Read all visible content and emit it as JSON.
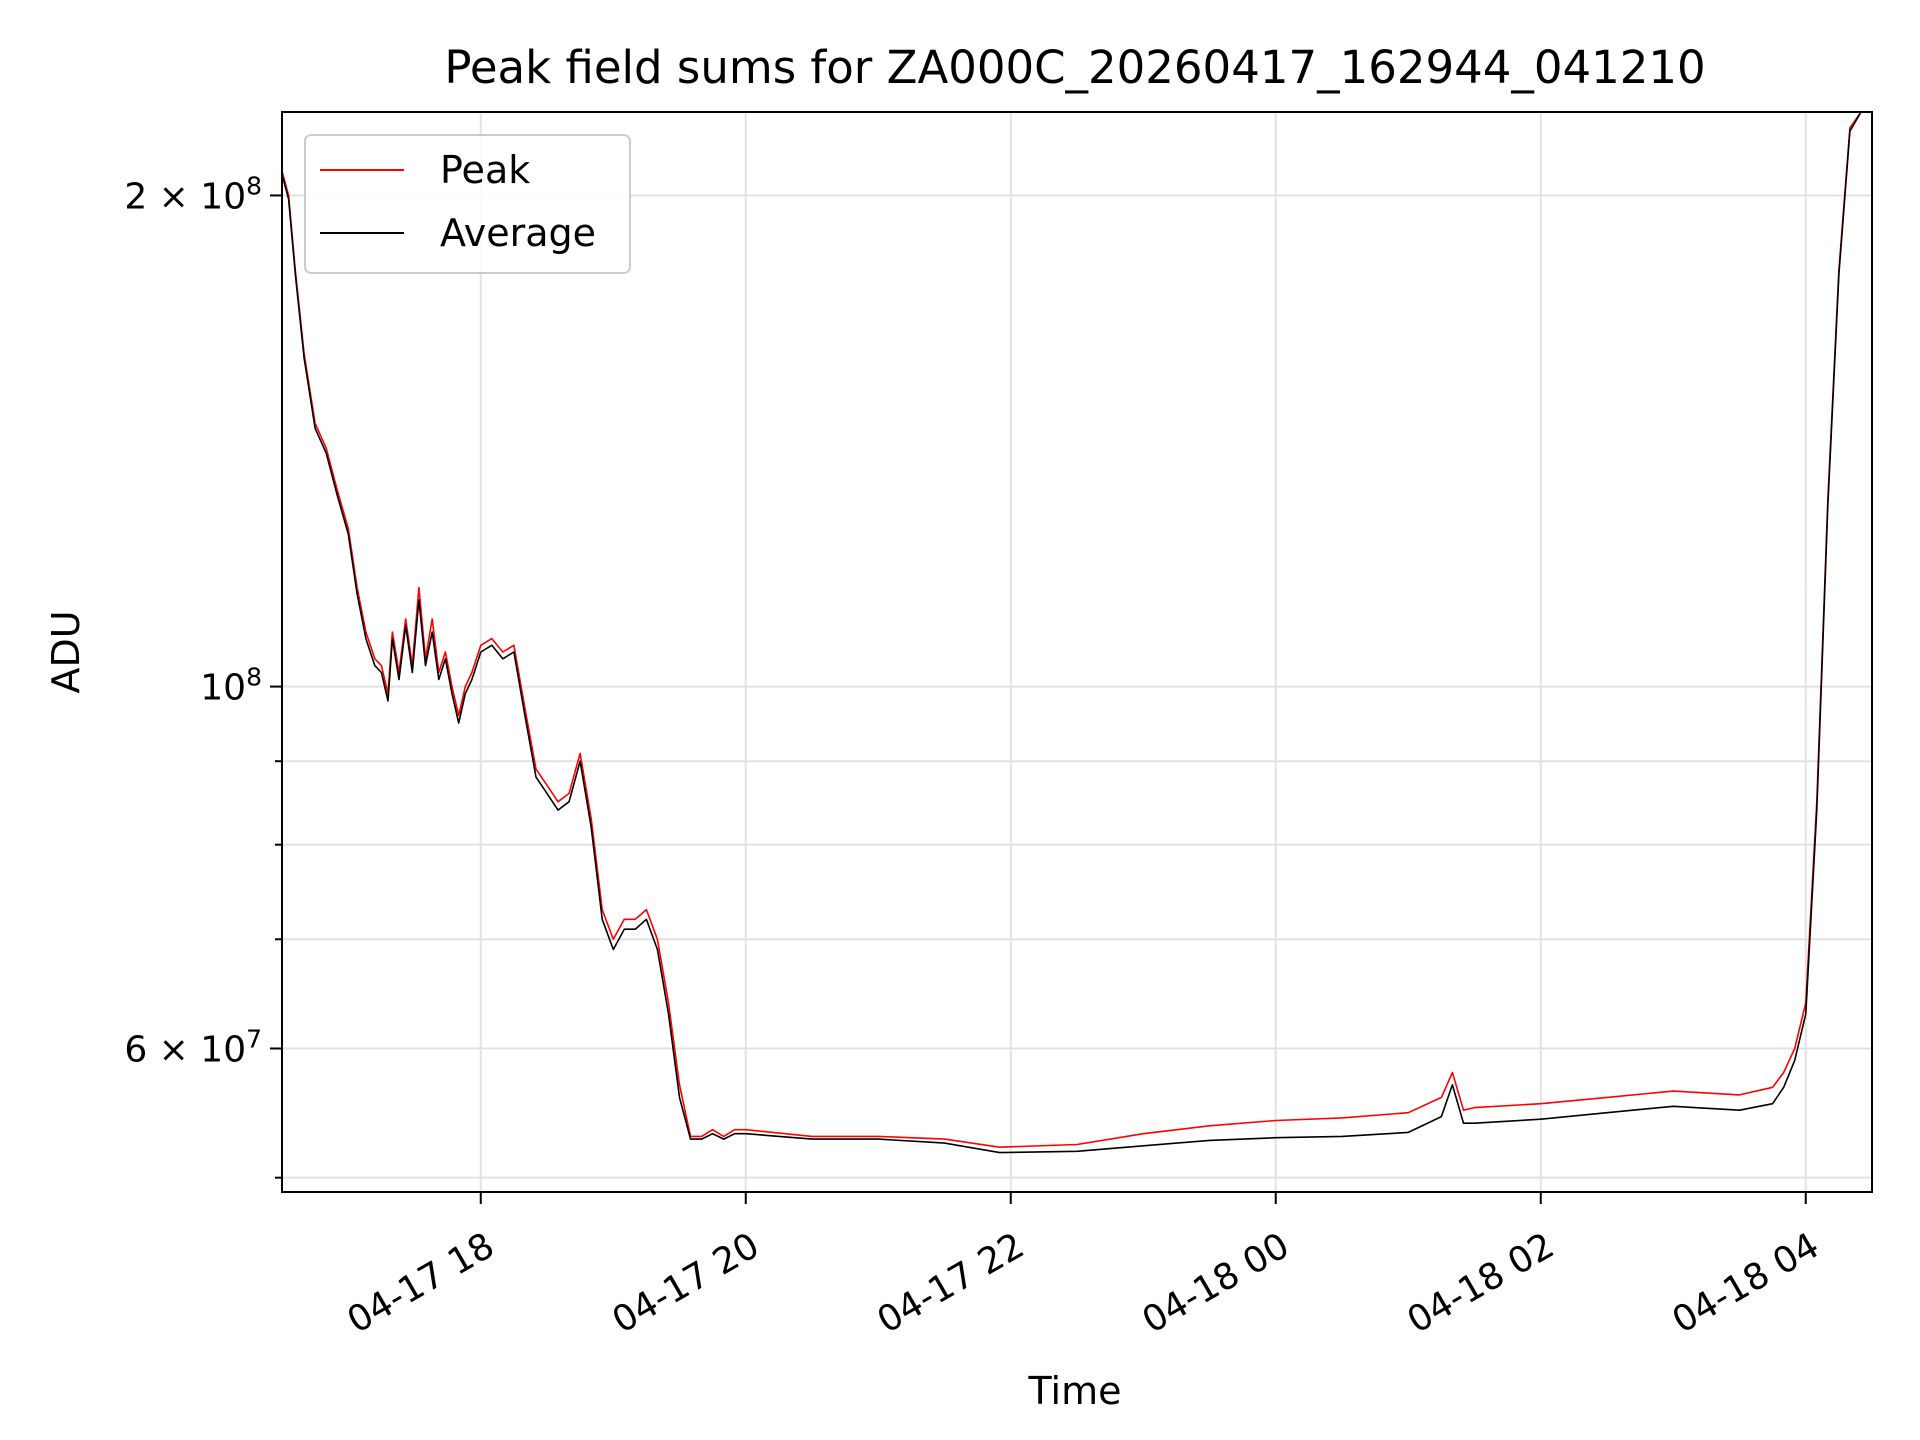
{
  "chart_data": {
    "type": "line",
    "title": "Peak field sums for ZA000C_20260417_162944_041210",
    "xlabel": "Time",
    "ylabel": "ADU",
    "yscale": "log",
    "grid": true,
    "legend_placement": "top-left",
    "xlim": [
      "2026-04-17 16:30",
      "2026-04-18 04:30"
    ],
    "ylim": [
      49000000,
      225000000
    ],
    "x_ticks": [
      {
        "value": "2026-04-17 18:00",
        "label": "04-17 18"
      },
      {
        "value": "2026-04-17 20:00",
        "label": "04-17 20"
      },
      {
        "value": "2026-04-17 22:00",
        "label": "04-17 22"
      },
      {
        "value": "2026-04-18 00:00",
        "label": "04-18 00"
      },
      {
        "value": "2026-04-18 02:00",
        "label": "04-18 02"
      },
      {
        "value": "2026-04-18 04:00",
        "label": "04-18 04"
      }
    ],
    "y_major_ticks": [
      {
        "value": 60000000,
        "mantissa": "6",
        "exponent": "7"
      },
      {
        "value": 100000000,
        "mantissa": "",
        "exponent": "8"
      },
      {
        "value": 200000000,
        "mantissa": "2",
        "exponent": "8"
      }
    ],
    "y_minor_ticks": [
      50000000,
      70000000,
      80000000,
      90000000
    ],
    "series": [
      {
        "name": "Peak",
        "color": "#ff0000",
        "x": [
          "2026-04-17 16:30",
          "2026-04-17 16:33",
          "2026-04-17 16:36",
          "2026-04-17 16:40",
          "2026-04-17 16:45",
          "2026-04-17 16:50",
          "2026-04-17 16:55",
          "2026-04-17 17:00",
          "2026-04-17 17:04",
          "2026-04-17 17:08",
          "2026-04-17 17:12",
          "2026-04-17 17:15",
          "2026-04-17 17:18",
          "2026-04-17 17:20",
          "2026-04-17 17:23",
          "2026-04-17 17:26",
          "2026-04-17 17:29",
          "2026-04-17 17:32",
          "2026-04-17 17:35",
          "2026-04-17 17:38",
          "2026-04-17 17:41",
          "2026-04-17 17:44",
          "2026-04-17 17:47",
          "2026-04-17 17:50",
          "2026-04-17 17:53",
          "2026-04-17 17:56",
          "2026-04-17 18:00",
          "2026-04-17 18:05",
          "2026-04-17 18:10",
          "2026-04-17 18:15",
          "2026-04-17 18:20",
          "2026-04-17 18:25",
          "2026-04-17 18:30",
          "2026-04-17 18:35",
          "2026-04-17 18:40",
          "2026-04-17 18:45",
          "2026-04-17 18:50",
          "2026-04-17 18:55",
          "2026-04-17 19:00",
          "2026-04-17 19:05",
          "2026-04-17 19:10",
          "2026-04-17 19:15",
          "2026-04-17 19:20",
          "2026-04-17 19:25",
          "2026-04-17 19:30",
          "2026-04-17 19:35",
          "2026-04-17 19:40",
          "2026-04-17 19:45",
          "2026-04-17 19:50",
          "2026-04-17 19:55",
          "2026-04-17 20:00",
          "2026-04-17 20:30",
          "2026-04-17 21:00",
          "2026-04-17 21:30",
          "2026-04-17 21:55",
          "2026-04-17 22:30",
          "2026-04-17 23:00",
          "2026-04-17 23:30",
          "2026-04-18 00:00",
          "2026-04-18 00:30",
          "2026-04-18 01:00",
          "2026-04-18 01:15",
          "2026-04-18 01:20",
          "2026-04-18 01:25",
          "2026-04-18 01:30",
          "2026-04-18 02:00",
          "2026-04-18 02:30",
          "2026-04-18 03:00",
          "2026-04-18 03:30",
          "2026-04-18 03:45",
          "2026-04-18 03:50",
          "2026-04-18 03:55",
          "2026-04-18 04:00",
          "2026-04-18 04:05",
          "2026-04-18 04:10",
          "2026-04-18 04:15",
          "2026-04-18 04:20",
          "2026-04-18 04:25",
          "2026-04-18 04:30"
        ],
        "values": [
          207000000,
          200000000,
          180000000,
          160000000,
          145000000,
          140000000,
          132000000,
          125000000,
          115000000,
          108000000,
          104000000,
          103000000,
          99000000,
          108000000,
          102000000,
          110000000,
          103000000,
          115000000,
          104000000,
          110000000,
          102000000,
          105000000,
          100000000,
          96000000,
          100000000,
          102000000,
          106000000,
          107000000,
          105000000,
          106000000,
          97000000,
          89000000,
          87000000,
          85000000,
          86000000,
          91000000,
          83000000,
          73000000,
          70000000,
          72000000,
          72000000,
          73000000,
          70000000,
          64000000,
          57000000,
          53000000,
          53000000,
          53500000,
          53000000,
          53500000,
          53500000,
          53000000,
          53000000,
          52800000,
          52200000,
          52400000,
          53200000,
          53800000,
          54200000,
          54400000,
          54800000,
          56000000,
          58000000,
          55000000,
          55200000,
          55500000,
          56000000,
          56500000,
          56200000,
          56800000,
          58000000,
          60000000,
          64000000,
          85000000,
          130000000,
          180000000,
          220000000,
          225000000,
          225000000
        ]
      },
      {
        "name": "Average",
        "color": "#000000",
        "x": [
          "2026-04-17 16:30",
          "2026-04-17 16:33",
          "2026-04-17 16:36",
          "2026-04-17 16:40",
          "2026-04-17 16:45",
          "2026-04-17 16:50",
          "2026-04-17 16:55",
          "2026-04-17 17:00",
          "2026-04-17 17:04",
          "2026-04-17 17:08",
          "2026-04-17 17:12",
          "2026-04-17 17:15",
          "2026-04-17 17:18",
          "2026-04-17 17:20",
          "2026-04-17 17:23",
          "2026-04-17 17:26",
          "2026-04-17 17:29",
          "2026-04-17 17:32",
          "2026-04-17 17:35",
          "2026-04-17 17:38",
          "2026-04-17 17:41",
          "2026-04-17 17:44",
          "2026-04-17 17:47",
          "2026-04-17 17:50",
          "2026-04-17 17:53",
          "2026-04-17 17:56",
          "2026-04-17 18:00",
          "2026-04-17 18:05",
          "2026-04-17 18:10",
          "2026-04-17 18:15",
          "2026-04-17 18:20",
          "2026-04-17 18:25",
          "2026-04-17 18:30",
          "2026-04-17 18:35",
          "2026-04-17 18:40",
          "2026-04-17 18:45",
          "2026-04-17 18:50",
          "2026-04-17 18:55",
          "2026-04-17 19:00",
          "2026-04-17 19:05",
          "2026-04-17 19:10",
          "2026-04-17 19:15",
          "2026-04-17 19:20",
          "2026-04-17 19:25",
          "2026-04-17 19:30",
          "2026-04-17 19:35",
          "2026-04-17 19:40",
          "2026-04-17 19:45",
          "2026-04-17 19:50",
          "2026-04-17 19:55",
          "2026-04-17 20:00",
          "2026-04-17 20:30",
          "2026-04-17 21:00",
          "2026-04-17 21:30",
          "2026-04-17 21:55",
          "2026-04-17 22:30",
          "2026-04-17 23:00",
          "2026-04-17 23:30",
          "2026-04-18 00:00",
          "2026-04-18 00:30",
          "2026-04-18 01:00",
          "2026-04-18 01:15",
          "2026-04-18 01:20",
          "2026-04-18 01:25",
          "2026-04-18 01:30",
          "2026-04-18 02:00",
          "2026-04-18 02:30",
          "2026-04-18 03:00",
          "2026-04-18 03:30",
          "2026-04-18 03:45",
          "2026-04-18 03:50",
          "2026-04-18 03:55",
          "2026-04-18 04:00",
          "2026-04-18 04:05",
          "2026-04-18 04:10",
          "2026-04-18 04:15",
          "2026-04-18 04:20",
          "2026-04-18 04:25",
          "2026-04-18 04:30"
        ],
        "values": [
          206000000,
          199000000,
          179000000,
          159000000,
          144000000,
          139000000,
          131000000,
          124000000,
          114000000,
          107000000,
          103000000,
          102000000,
          98000000,
          107000000,
          101000000,
          109000000,
          102000000,
          113000000,
          103000000,
          108000000,
          101000000,
          104000000,
          99000000,
          95000000,
          99000000,
          101000000,
          105000000,
          106000000,
          104000000,
          105000000,
          96000000,
          88000000,
          86000000,
          84000000,
          85000000,
          90000000,
          82000000,
          72000000,
          69000000,
          71000000,
          71000000,
          72000000,
          69000000,
          63000000,
          56000000,
          52800000,
          52800000,
          53200000,
          52800000,
          53200000,
          53200000,
          52800000,
          52800000,
          52500000,
          51800000,
          51900000,
          52300000,
          52700000,
          52900000,
          53000000,
          53300000,
          54500000,
          57000000,
          54000000,
          54000000,
          54300000,
          54800000,
          55300000,
          55000000,
          55500000,
          56800000,
          59000000,
          63000000,
          84000000,
          129000000,
          179000000,
          219000000,
          225000000,
          225000000
        ]
      }
    ]
  }
}
